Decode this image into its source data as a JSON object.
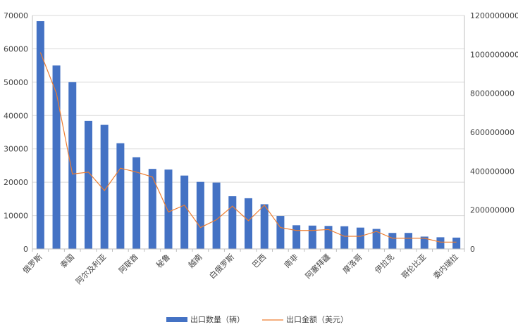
{
  "chart_data": {
    "type": "bar",
    "categories": [
      "俄罗斯",
      "",
      "泰国",
      "",
      "阿尔及利亚",
      "",
      "阿联酋",
      "",
      "秘鲁",
      "",
      "越南",
      "",
      "白俄罗斯",
      "",
      "巴西",
      "",
      "南非",
      "",
      "阿塞拜疆",
      "",
      "摩洛哥",
      "",
      "伊拉克",
      "",
      "哥伦比亚",
      "",
      "委内瑞拉"
    ],
    "series": [
      {
        "name": "出口数量（辆）",
        "type": "bar",
        "axis": "left",
        "color": "#4472C4",
        "values": [
          68300,
          55000,
          50000,
          38400,
          37200,
          31700,
          27500,
          24000,
          23800,
          22000,
          20100,
          19900,
          15800,
          15200,
          13400,
          9900,
          7100,
          7000,
          6900,
          6800,
          6400,
          6000,
          4800,
          4800,
          3700,
          3500,
          3400
        ]
      },
      {
        "name": "出口金额（美元）",
        "type": "line",
        "axis": "right",
        "color": "#ED7D31",
        "values": [
          1010000000,
          800000000,
          385000000,
          395000000,
          300000000,
          415000000,
          395000000,
          370000000,
          190000000,
          225000000,
          110000000,
          150000000,
          220000000,
          145000000,
          225000000,
          110000000,
          95000000,
          95000000,
          100000000,
          65000000,
          65000000,
          90000000,
          55000000,
          55000000,
          55000000,
          35000000,
          35000000
        ]
      }
    ],
    "y_left": {
      "min": 0,
      "max": 70000,
      "ticks": [
        "0",
        "10000",
        "20000",
        "30000",
        "40000",
        "50000",
        "60000",
        "70000"
      ]
    },
    "y_right": {
      "min": 0,
      "max": 1200000000,
      "ticks": [
        "0",
        "200000000",
        "400000000",
        "600000000",
        "800000000",
        "1000000000",
        "1200000000"
      ]
    },
    "grid": true,
    "legend_position": "bottom"
  }
}
